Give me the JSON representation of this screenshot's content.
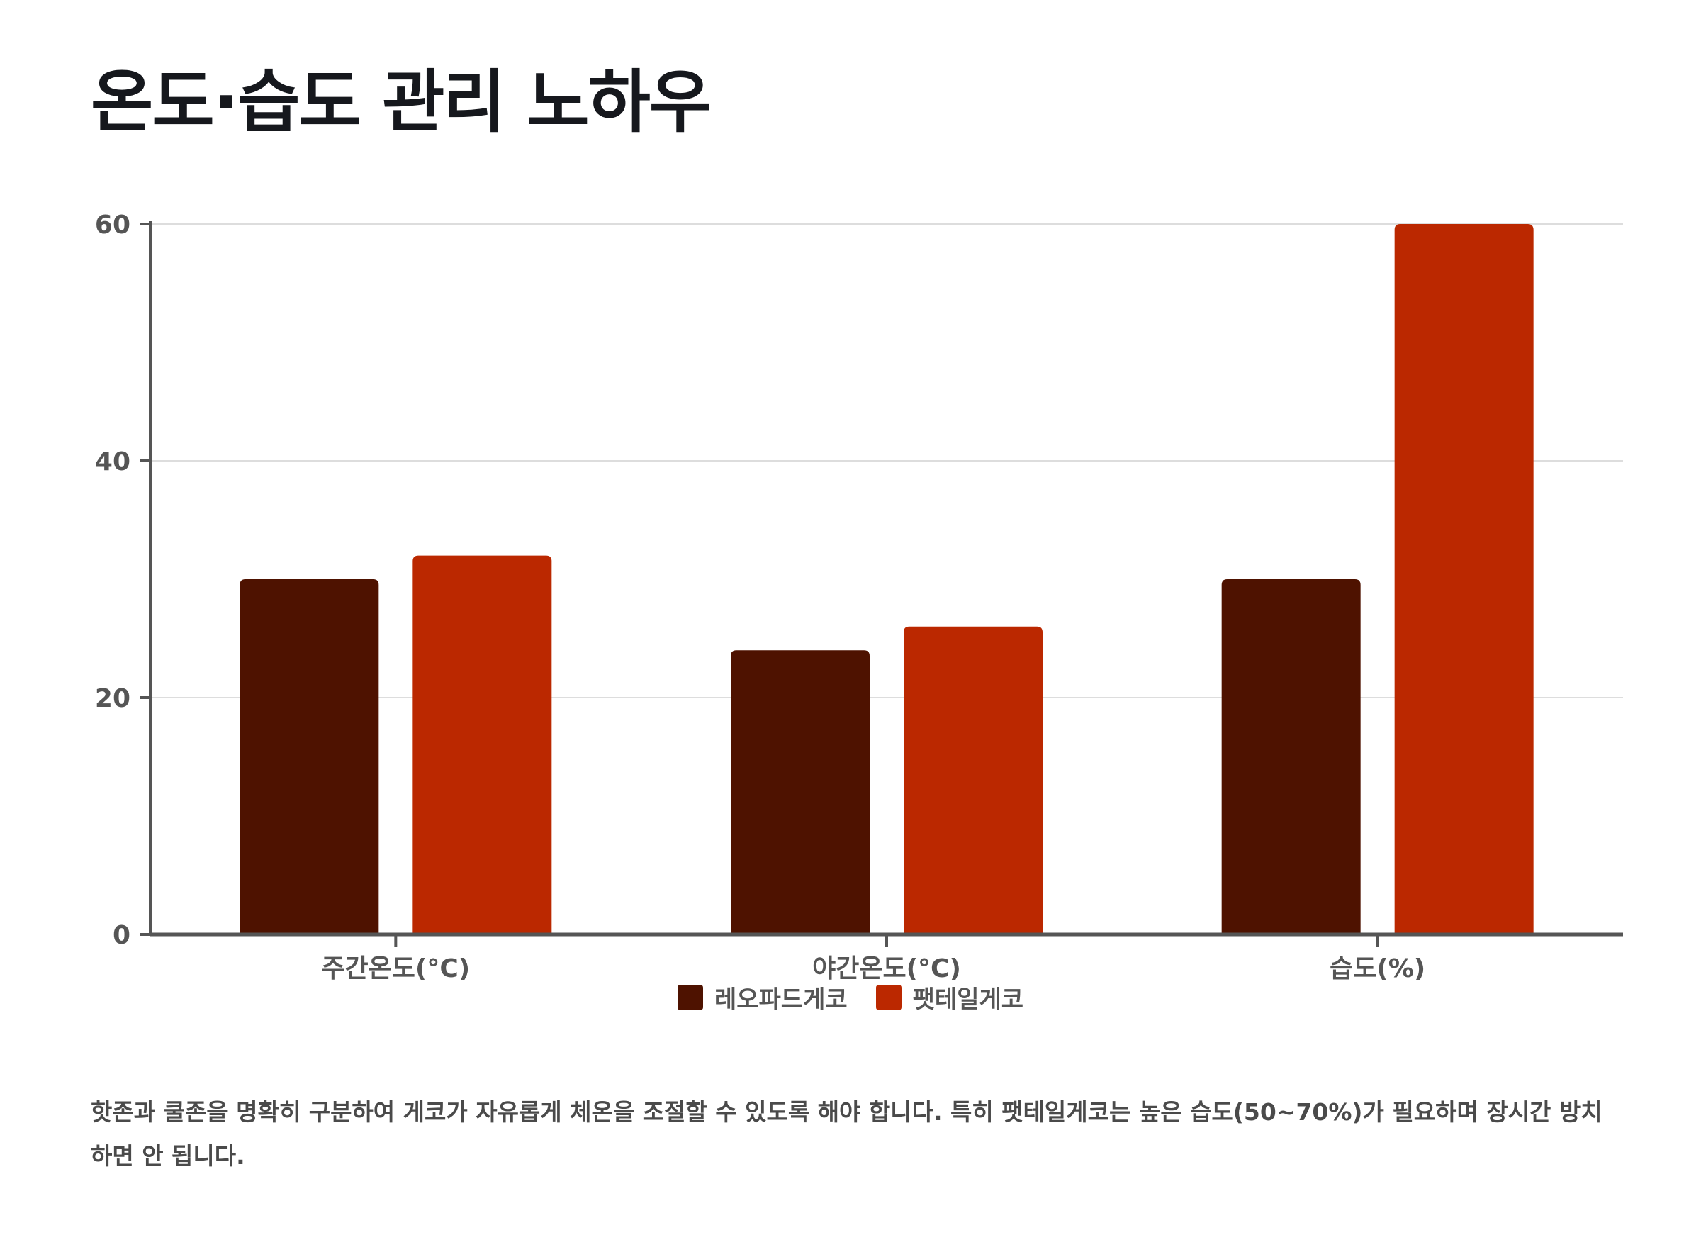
{
  "title": "온도·습도 관리 노하우",
  "caption": "핫존과 쿨존을 명확히 구분하여 게코가 자유롭게 체온을 조절할 수 있도록 해야 합니다. 특히 팻테일게코는 높은 습도(50~70%)가 필요하며 장시간 방치하면 안 됩니다.",
  "colors": {
    "leopard": "#4e1200",
    "fattail": "#bb2800",
    "axis": "#555555",
    "grid": "#dddddd"
  },
  "chart_data": {
    "type": "bar",
    "categories": [
      "주간온도(°C)",
      "야간온도(°C)",
      "습도(%)"
    ],
    "series": [
      {
        "name": "레오파드게코",
        "values": [
          30,
          24,
          30
        ]
      },
      {
        "name": "팻테일게코",
        "values": [
          32,
          26,
          60
        ]
      }
    ],
    "ylim": [
      0,
      60
    ],
    "yticks": [
      0,
      20,
      40,
      60
    ],
    "grid": true,
    "legend": "bottom-center",
    "title": "",
    "xlabel": "",
    "ylabel": ""
  }
}
